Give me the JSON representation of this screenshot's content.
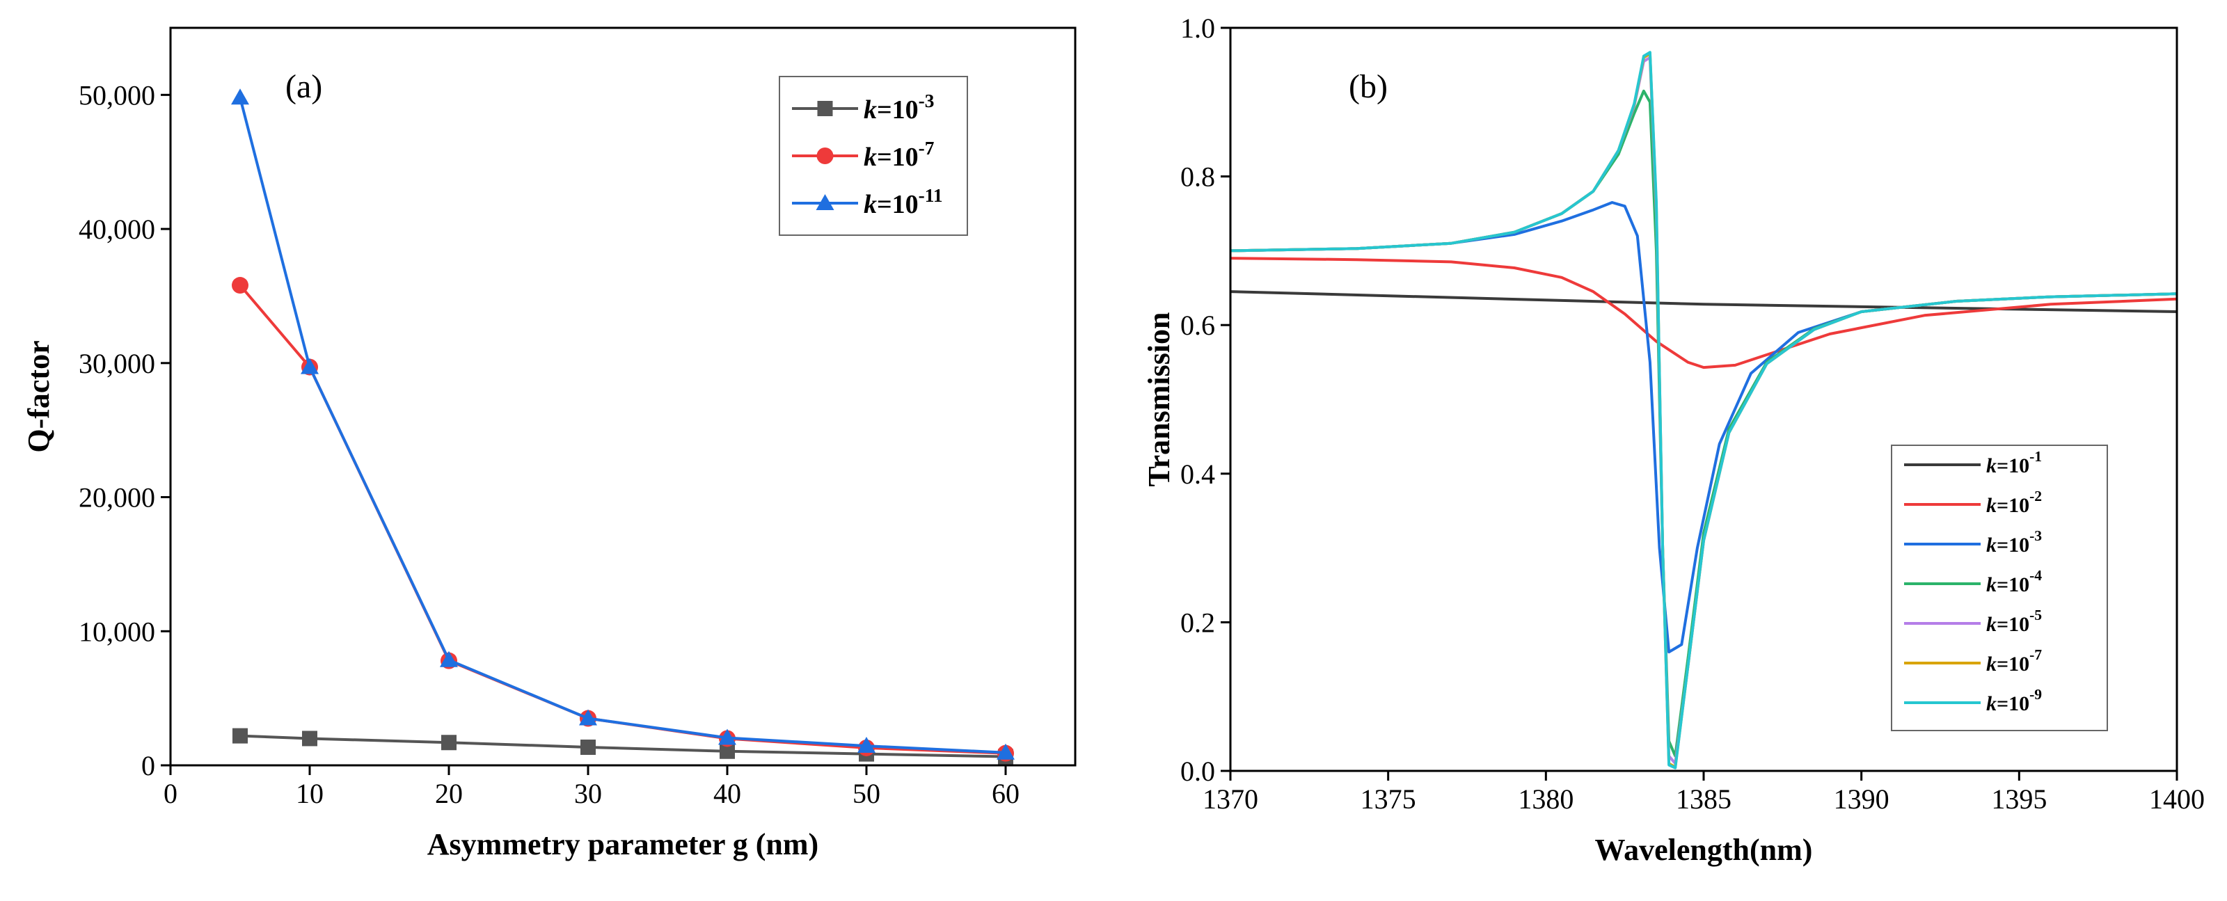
{
  "chart_data": [
    {
      "type": "line",
      "panel_label": "(a)",
      "xlabel": "Asymmetry parameter g (nm)",
      "ylabel": "Q-factor",
      "xlim": [
        0,
        65
      ],
      "ylim": [
        0,
        55000
      ],
      "xticks": [
        0,
        10,
        20,
        30,
        40,
        50,
        60
      ],
      "yticks": [
        0,
        10000,
        20000,
        30000,
        40000,
        50000
      ],
      "ytick_labels": [
        "0",
        "10,000",
        "20,000",
        "30,000",
        "40,000",
        "50,000"
      ],
      "legend_position": "top-right",
      "x": [
        5,
        10,
        20,
        30,
        40,
        50,
        60
      ],
      "series": [
        {
          "name_base": "k=10",
          "exponent": "-3",
          "color": "#555555",
          "marker": "square",
          "values": [
            2200,
            2000,
            1700,
            1350,
            1050,
            850,
            650
          ]
        },
        {
          "name_base": "k=10",
          "exponent": "-7",
          "color": "#ee3a3a",
          "marker": "circle",
          "values": [
            35800,
            29700,
            7800,
            3500,
            2000,
            1300,
            900
          ]
        },
        {
          "name_base": "k=10",
          "exponent": "-11",
          "color": "#1f6fe0",
          "marker": "triangle",
          "values": [
            49800,
            29700,
            7850,
            3500,
            2050,
            1450,
            950
          ]
        }
      ]
    },
    {
      "type": "line",
      "panel_label": "(b)",
      "xlabel": "Wavelength(nm)",
      "ylabel": "Transmission",
      "xlim": [
        1370,
        1400
      ],
      "ylim": [
        0,
        1.0
      ],
      "xticks": [
        1370,
        1375,
        1380,
        1385,
        1390,
        1395,
        1400
      ],
      "yticks": [
        0.0,
        0.2,
        0.4,
        0.6,
        0.8,
        1.0
      ],
      "ytick_labels": [
        "0.0",
        "0.2",
        "0.4",
        "0.6",
        "0.8",
        "1.0"
      ],
      "legend_position": "bottom-right",
      "series": [
        {
          "name_base": "k=10",
          "exponent": "-1",
          "color": "#3a3a3a",
          "x": [
            1370,
            1385,
            1400
          ],
          "y": [
            0.645,
            0.628,
            0.618
          ]
        },
        {
          "name_base": "k=10",
          "exponent": "-2",
          "color": "#ee3a3a",
          "x": [
            1370,
            1374,
            1377,
            1379,
            1380.5,
            1381.5,
            1382.5,
            1383.5,
            1384.5,
            1385,
            1386,
            1387,
            1389,
            1392,
            1396,
            1400
          ],
          "y": [
            0.69,
            0.688,
            0.685,
            0.677,
            0.664,
            0.645,
            0.615,
            0.578,
            0.55,
            0.543,
            0.546,
            0.56,
            0.588,
            0.613,
            0.628,
            0.635
          ]
        },
        {
          "name_base": "k=10",
          "exponent": "-3",
          "color": "#1f6fe0",
          "x": [
            1370,
            1374,
            1377,
            1379,
            1380.5,
            1381.5,
            1382.1,
            1382.5,
            1382.9,
            1383.3,
            1383.6,
            1383.9,
            1384.3,
            1384.8,
            1385.5,
            1386.5,
            1388,
            1390,
            1393,
            1396,
            1400
          ],
          "y": [
            0.7,
            0.703,
            0.71,
            0.722,
            0.74,
            0.755,
            0.765,
            0.76,
            0.72,
            0.55,
            0.3,
            0.16,
            0.17,
            0.3,
            0.44,
            0.535,
            0.59,
            0.618,
            0.632,
            0.638,
            0.642
          ]
        },
        {
          "name_base": "k=10",
          "exponent": "-4",
          "color": "#2bb36a",
          "x": [
            1370,
            1374,
            1377,
            1379,
            1380.5,
            1381.5,
            1382.3,
            1382.8,
            1383.1,
            1383.3,
            1383.5,
            1383.7,
            1383.9,
            1384.1,
            1384.5,
            1385,
            1385.8,
            1387,
            1388.5,
            1390,
            1393,
            1396,
            1400
          ],
          "y": [
            0.7,
            0.703,
            0.71,
            0.725,
            0.75,
            0.78,
            0.83,
            0.885,
            0.915,
            0.9,
            0.7,
            0.3,
            0.04,
            0.02,
            0.15,
            0.32,
            0.46,
            0.55,
            0.595,
            0.618,
            0.632,
            0.638,
            0.642
          ]
        },
        {
          "name_base": "k=10",
          "exponent": "-5",
          "color": "#b57ee8",
          "x": [
            1370,
            1374,
            1377,
            1379,
            1380.5,
            1381.5,
            1382.3,
            1382.8,
            1383.1,
            1383.3,
            1383.5,
            1383.7,
            1383.9,
            1384.1,
            1384.5,
            1385,
            1385.8,
            1387,
            1388.5,
            1390,
            1393,
            1396,
            1400
          ],
          "y": [
            0.7,
            0.703,
            0.71,
            0.725,
            0.75,
            0.78,
            0.835,
            0.895,
            0.955,
            0.96,
            0.75,
            0.3,
            0.02,
            0.01,
            0.14,
            0.31,
            0.455,
            0.548,
            0.594,
            0.618,
            0.632,
            0.638,
            0.642
          ]
        },
        {
          "name_base": "k=10",
          "exponent": "-7",
          "color": "#d9a400",
          "x": [
            1370,
            1374,
            1377,
            1379,
            1380.5,
            1381.5,
            1382.3,
            1382.8,
            1383.1,
            1383.3,
            1383.5,
            1383.7,
            1383.9,
            1384.1,
            1384.5,
            1385,
            1385.8,
            1387,
            1388.5,
            1390,
            1393,
            1396,
            1400
          ],
          "y": [
            0.7,
            0.703,
            0.71,
            0.725,
            0.75,
            0.78,
            0.835,
            0.897,
            0.96,
            0.965,
            0.76,
            0.3,
            0.01,
            0.005,
            0.14,
            0.31,
            0.455,
            0.548,
            0.594,
            0.618,
            0.632,
            0.638,
            0.642
          ]
        },
        {
          "name_base": "k=10",
          "exponent": "-9",
          "color": "#26c6d0",
          "x": [
            1370,
            1374,
            1377,
            1379,
            1380.5,
            1381.5,
            1382.3,
            1382.8,
            1383.1,
            1383.3,
            1383.5,
            1383.7,
            1383.9,
            1384.1,
            1384.5,
            1385,
            1385.8,
            1387,
            1388.5,
            1390,
            1393,
            1396,
            1400
          ],
          "y": [
            0.7,
            0.703,
            0.71,
            0.725,
            0.75,
            0.78,
            0.835,
            0.898,
            0.962,
            0.967,
            0.765,
            0.3,
            0.008,
            0.004,
            0.14,
            0.31,
            0.455,
            0.548,
            0.594,
            0.618,
            0.632,
            0.638,
            0.642
          ]
        }
      ]
    }
  ]
}
